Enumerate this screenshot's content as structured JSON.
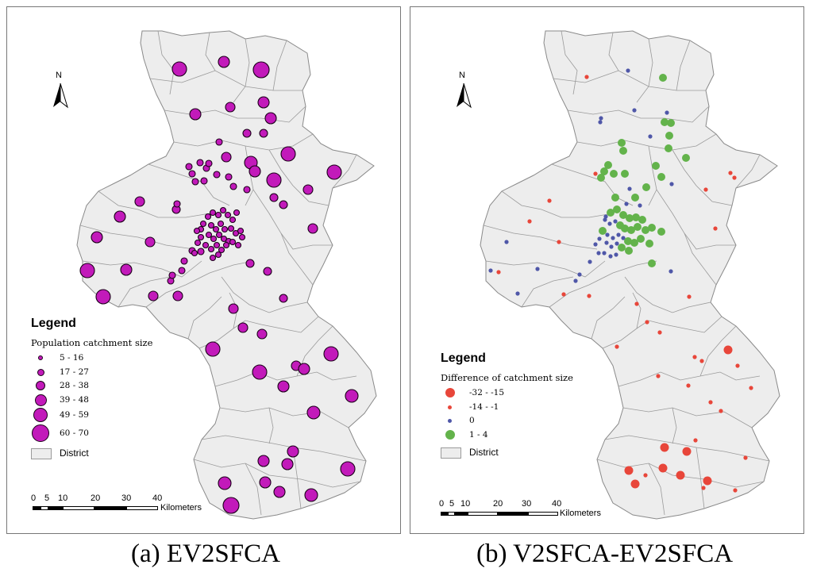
{
  "captions": {
    "a": "(a) EV2SFCA",
    "b": "(b) V2SFCA-EV2SFCA"
  },
  "north_label": "N",
  "legend_a": {
    "title": "Legend",
    "subtitle": "Population catchment size",
    "classes": [
      "5 - 16",
      "17 - 27",
      "28 - 38",
      "39 - 48",
      "49 - 59",
      "60 - 70"
    ],
    "district": "District"
  },
  "legend_b": {
    "title": "Legend",
    "subtitle": "Difference of catchment size",
    "classes": [
      "-32 - -15",
      "-14 - -1",
      "0",
      "1 - 4"
    ],
    "district": "District"
  },
  "scale": {
    "ticks": [
      "0",
      "5",
      "10",
      "20",
      "30",
      "40"
    ],
    "unit": "Kilometers"
  },
  "colors": {
    "district_fill": "#ededed",
    "district_border": "#9a9a9a",
    "catchment_fill": "#c21aba",
    "catchment_stroke": "#1a0018",
    "diff_large_negative": "#e8463a",
    "diff_small_negative": "#e8463a",
    "diff_zero": "#4f57a8",
    "diff_positive": "#63b34b"
  },
  "chart_data": {
    "type": "map",
    "panels": [
      {
        "name": "(a) EV2SFCA",
        "variable": "Population catchment size",
        "classes": [
          {
            "label": "5 - 16",
            "min": 5,
            "max": 16
          },
          {
            "label": "17 - 27",
            "min": 17,
            "max": 27
          },
          {
            "label": "28 - 38",
            "min": 28,
            "max": 38
          },
          {
            "label": "39 - 48",
            "min": 39,
            "max": 48
          },
          {
            "label": "49 - 59",
            "min": 49,
            "max": 59
          },
          {
            "label": "60 - 70",
            "min": 60,
            "max": 70
          }
        ]
      },
      {
        "name": "(b) V2SFCA-EV2SFCA",
        "variable": "Difference of catchment size",
        "classes": [
          {
            "label": "-32 - -15",
            "min": -32,
            "max": -15
          },
          {
            "label": "-14 - -1",
            "min": -14,
            "max": -1
          },
          {
            "label": "0",
            "min": 0,
            "max": 0
          },
          {
            "label": "1 - 4",
            "min": 1,
            "max": 4
          }
        ]
      }
    ],
    "scale_km": [
      0,
      5,
      10,
      20,
      30,
      40
    ]
  }
}
